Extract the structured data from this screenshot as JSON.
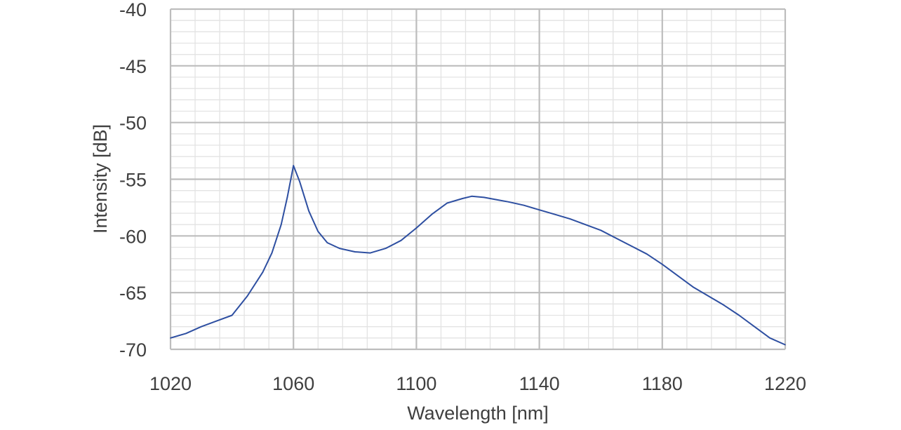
{
  "chart_data": {
    "type": "line",
    "title": "",
    "xlabel": "Wavelength  [nm]",
    "ylabel": "Intensity  [dB]",
    "xlim": [
      1020,
      1220
    ],
    "ylim": [
      -70,
      -40
    ],
    "x_ticks": [
      1020,
      1060,
      1100,
      1140,
      1180,
      1220
    ],
    "y_ticks": [
      -40,
      -45,
      -50,
      -55,
      -60,
      -65,
      -70
    ],
    "x_tick_labels": [
      "1020",
      "1060",
      "1100",
      "1140",
      "1180",
      "1220"
    ],
    "y_tick_labels": [
      "-40",
      "-45",
      "-50",
      "-55",
      "-60",
      "-65",
      "-70"
    ],
    "major_grid": true,
    "minor_grid": true,
    "minor_x_step": 8,
    "minor_y_step": 1,
    "legend": "none",
    "colors": {
      "line": "#2e4fa1",
      "major_grid": "#bdbdbd",
      "minor_grid": "#e3e3e3",
      "text": "#3f3f3f"
    },
    "series": [
      {
        "x": [
          1020,
          1025,
          1030,
          1035,
          1040,
          1045,
          1050,
          1053,
          1056,
          1058,
          1060,
          1062,
          1065,
          1068,
          1071,
          1075,
          1080,
          1085,
          1090,
          1095,
          1100,
          1105,
          1110,
          1115,
          1118,
          1122,
          1126,
          1130,
          1135,
          1140,
          1145,
          1150,
          1155,
          1160,
          1165,
          1170,
          1175,
          1180,
          1185,
          1190,
          1195,
          1200,
          1205,
          1210,
          1215,
          1220
        ],
        "y": [
          -69.0,
          -68.6,
          -68.0,
          -67.5,
          -67.0,
          -65.3,
          -63.2,
          -61.5,
          -59.0,
          -56.6,
          -53.8,
          -55.2,
          -57.8,
          -59.6,
          -60.6,
          -61.1,
          -61.4,
          -61.5,
          -61.1,
          -60.4,
          -59.3,
          -58.1,
          -57.1,
          -56.7,
          -56.5,
          -56.6,
          -56.8,
          -57.0,
          -57.3,
          -57.7,
          -58.1,
          -58.5,
          -59.0,
          -59.5,
          -60.2,
          -60.9,
          -61.6,
          -62.5,
          -63.5,
          -64.5,
          -65.3,
          -66.1,
          -67.0,
          -68.0,
          -69.0,
          -69.6
        ]
      }
    ]
  }
}
